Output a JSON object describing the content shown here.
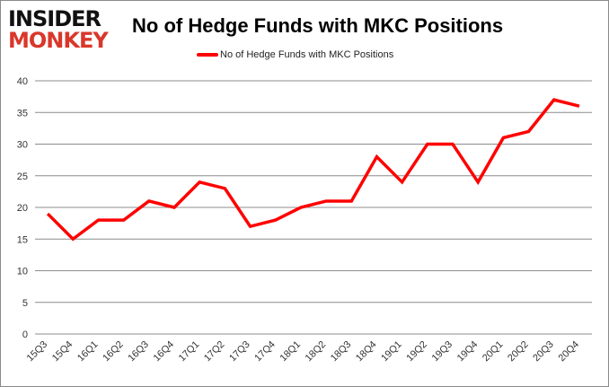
{
  "logo": {
    "line1": "INSIDER",
    "line2": "MONKEY"
  },
  "chart_data": {
    "type": "line",
    "title": "No of Hedge Funds with MKC Positions",
    "xlabel": "",
    "ylabel": "",
    "categories": [
      "15Q3",
      "15Q4",
      "16Q1",
      "16Q2",
      "16Q3",
      "16Q4",
      "17Q1",
      "17Q2",
      "17Q3",
      "17Q4",
      "18Q1",
      "18Q2",
      "18Q3",
      "18Q4",
      "19Q1",
      "19Q2",
      "19Q3",
      "19Q4",
      "20Q1",
      "20Q2",
      "20Q3",
      "20Q4"
    ],
    "series": [
      {
        "name": "No of Hedge Funds with MKC Positions",
        "color": "#ff0000",
        "values": [
          19,
          15,
          18,
          18,
          21,
          20,
          24,
          23,
          17,
          18,
          20,
          21,
          21,
          28,
          24,
          30,
          30,
          24,
          31,
          32,
          37,
          36
        ]
      }
    ],
    "ylim": [
      0,
      40
    ],
    "yticks": [
      0,
      5,
      10,
      15,
      20,
      25,
      30,
      35,
      40
    ],
    "grid": true,
    "legend": "top-center"
  }
}
